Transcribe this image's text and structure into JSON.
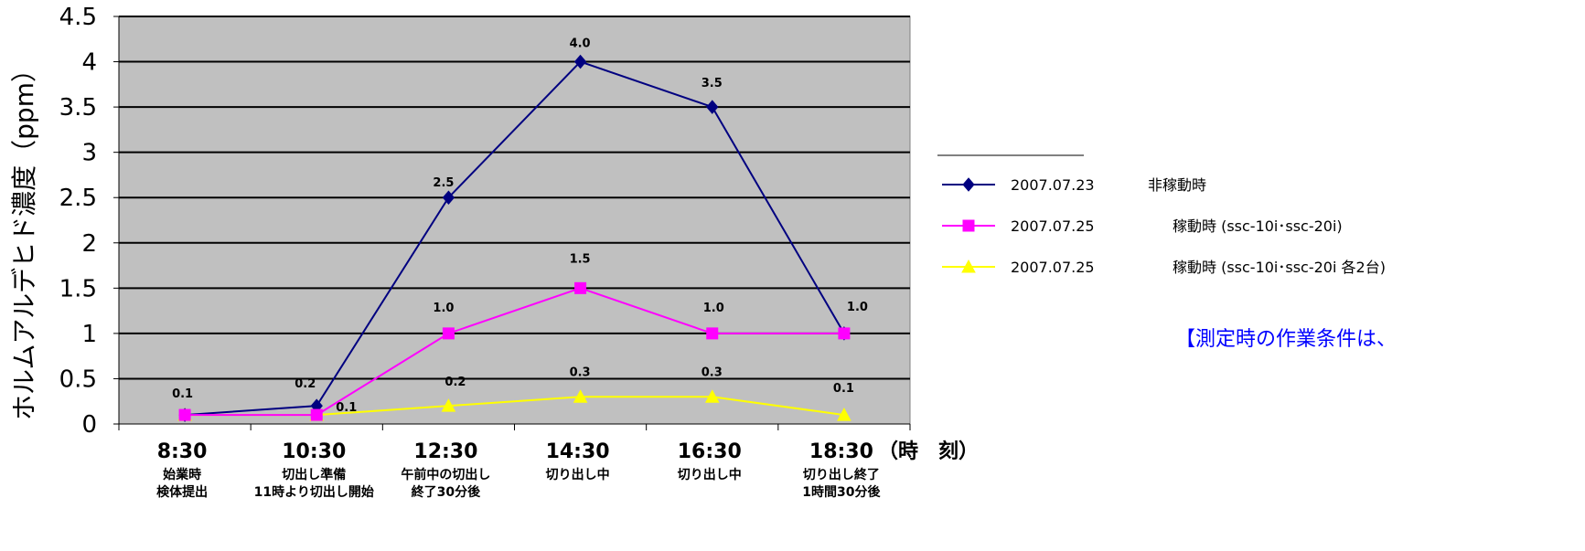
{
  "chart_data": {
    "type": "line",
    "ylabel": "ホルムアルデヒド濃度（ppm）",
    "xlabel_unit": "（時　刻）",
    "ylim": [
      0,
      4.5
    ],
    "ytick_step": 0.5,
    "y_ticks": [
      "0",
      "0.5",
      "1",
      "1.5",
      "2",
      "2.5",
      "3",
      "3.5",
      "4",
      "4.5"
    ],
    "grid": true,
    "legend_position": "right",
    "categories": [
      {
        "time": "8:30",
        "desc": [
          "始業時",
          "検体提出"
        ]
      },
      {
        "time": "10:30",
        "desc": [
          "切出し準備",
          "11時より切出し開始"
        ]
      },
      {
        "time": "12:30",
        "desc": [
          "午前中の切出し",
          "終了30分後"
        ]
      },
      {
        "time": "14:30",
        "desc": [
          "切り出し中"
        ]
      },
      {
        "time": "16:30",
        "desc": [
          "切り出し中"
        ]
      },
      {
        "time": "18:30",
        "desc": [
          "切り出し終了",
          "1時間30分後"
        ]
      }
    ],
    "series": [
      {
        "name": "2007.07.23",
        "condition": "非稼動時",
        "color": "#000080",
        "marker": "diamond",
        "values": [
          0.1,
          0.2,
          2.5,
          4.0,
          3.5,
          1.0
        ],
        "labels": [
          "0.1",
          "0.2",
          "2.5",
          "4.0",
          "3.5",
          "1.0"
        ]
      },
      {
        "name": "2007.07.25",
        "condition": "稼動時 (ssc-10i･ssc-20i)",
        "color": "#ff00ff",
        "marker": "square",
        "values": [
          0.1,
          0.1,
          1.0,
          1.5,
          1.0,
          1.0
        ],
        "labels": [
          "",
          "",
          "1.0",
          "1.5",
          "1.0",
          ""
        ]
      },
      {
        "name": "2007.07.25",
        "condition": "稼動時 (ssc-10i･ssc-20i 各2台)",
        "color": "#ffff00",
        "marker": "triangle",
        "values": [
          0.1,
          0.1,
          0.2,
          0.3,
          0.3,
          0.1
        ],
        "labels": [
          "",
          "0.1",
          "0.2",
          "0.3",
          "0.3",
          "0.1"
        ]
      }
    ]
  },
  "colors": {
    "plot_background": "#c0c0c0",
    "gridline": "#000000",
    "note_text": "#0000ff"
  },
  "note": "【測定時の作業条件は、"
}
